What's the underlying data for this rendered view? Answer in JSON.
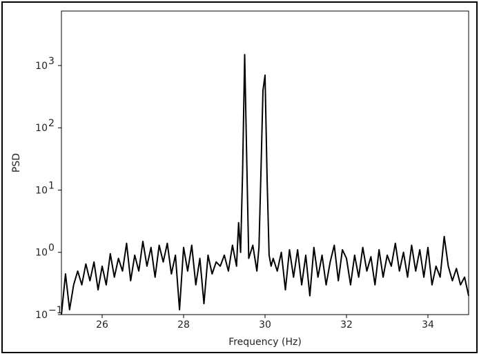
{
  "chart_data": {
    "type": "line",
    "title": "",
    "xlabel": "Frequency (Hz)",
    "ylabel": "PSD",
    "xlim": [
      25.0,
      35.0
    ],
    "ylim": [
      0.1,
      7500
    ],
    "yscale": "log",
    "grid": false,
    "legend": "none",
    "line_color": "#000000",
    "x_ticks": [
      {
        "value": 26,
        "label": "26"
      },
      {
        "value": 28,
        "label": "28"
      },
      {
        "value": 30,
        "label": "30"
      },
      {
        "value": 32,
        "label": "32"
      },
      {
        "value": 34,
        "label": "34"
      }
    ],
    "y_ticks": [
      {
        "value": 0.1,
        "base": "10",
        "exp": "−1"
      },
      {
        "value": 1,
        "base": "10",
        "exp": "0"
      },
      {
        "value": 10,
        "base": "10",
        "exp": "1"
      },
      {
        "value": 100,
        "base": "10",
        "exp": "2"
      },
      {
        "value": 1000,
        "base": "10",
        "exp": "3"
      }
    ],
    "series": [
      {
        "x": [
          25.0,
          25.1,
          25.2,
          25.3,
          25.4,
          25.5,
          25.6,
          25.7,
          25.8,
          25.9,
          26.0,
          26.1,
          26.2,
          26.3,
          26.4,
          26.5,
          26.6,
          26.7,
          26.8,
          26.9,
          27.0,
          27.1,
          27.2,
          27.3,
          27.4,
          27.5,
          27.6,
          27.7,
          27.8,
          27.9,
          28.0,
          28.1,
          28.2,
          28.3,
          28.4,
          28.5,
          28.6,
          28.7,
          28.8,
          28.9,
          29.0,
          29.1,
          29.2,
          29.3,
          29.35,
          29.4,
          29.45,
          29.5,
          29.55,
          29.6,
          29.7,
          29.8,
          29.85,
          29.9,
          29.95,
          30.0,
          30.05,
          30.1,
          30.15,
          30.2,
          30.3,
          30.4,
          30.5,
          30.6,
          30.7,
          30.8,
          30.9,
          31.0,
          31.1,
          31.2,
          31.3,
          31.4,
          31.5,
          31.6,
          31.7,
          31.8,
          31.9,
          32.0,
          32.1,
          32.2,
          32.3,
          32.4,
          32.5,
          32.6,
          32.7,
          32.8,
          32.9,
          33.0,
          33.1,
          33.2,
          33.3,
          33.4,
          33.5,
          33.6,
          33.7,
          33.8,
          33.9,
          34.0,
          34.1,
          34.2,
          34.3,
          34.4,
          34.5,
          34.6,
          34.7,
          34.8,
          34.9,
          35.0
        ],
        "y": [
          0.1,
          0.45,
          0.12,
          0.3,
          0.5,
          0.3,
          0.65,
          0.35,
          0.7,
          0.25,
          0.6,
          0.3,
          0.95,
          0.4,
          0.8,
          0.5,
          1.4,
          0.35,
          0.9,
          0.5,
          1.5,
          0.6,
          1.2,
          0.4,
          1.3,
          0.7,
          1.4,
          0.45,
          0.9,
          0.12,
          1.2,
          0.5,
          1.3,
          0.3,
          0.8,
          0.15,
          0.9,
          0.45,
          0.7,
          0.6,
          0.9,
          0.5,
          1.3,
          0.6,
          3.0,
          1.0,
          20,
          1500,
          30,
          0.8,
          1.3,
          0.5,
          1.2,
          20,
          400,
          700,
          15,
          0.9,
          0.6,
          0.8,
          0.5,
          1.0,
          0.25,
          1.1,
          0.4,
          1.1,
          0.3,
          0.9,
          0.2,
          1.2,
          0.4,
          0.9,
          0.3,
          0.7,
          1.3,
          0.35,
          1.1,
          0.8,
          0.3,
          0.9,
          0.4,
          1.2,
          0.5,
          0.85,
          0.3,
          1.1,
          0.4,
          0.9,
          0.6,
          1.4,
          0.5,
          1.0,
          0.4,
          1.3,
          0.5,
          1.1,
          0.4,
          1.2,
          0.3,
          0.6,
          0.4,
          1.8,
          0.6,
          0.35,
          0.55,
          0.3,
          0.4,
          0.2
        ]
      }
    ]
  }
}
